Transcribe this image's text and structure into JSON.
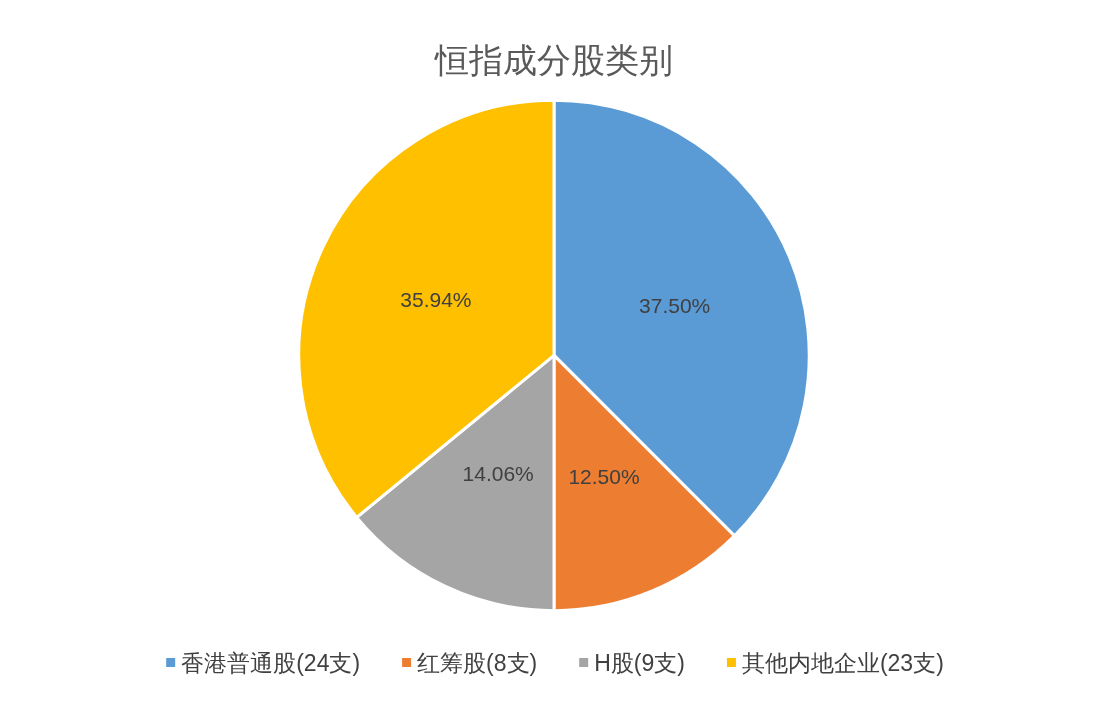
{
  "chart_data": {
    "type": "pie",
    "title": "恒指成分股类别",
    "categories": [
      "香港普通股(24支)",
      "红筹股(8支)",
      "H股(9支)",
      "其他内地企业(23支)"
    ],
    "values": [
      37.5,
      12.5,
      14.06,
      35.94
    ],
    "value_labels": [
      "37.50%",
      "12.50%",
      "14.06%",
      "35.94%"
    ],
    "colors": [
      "#5b9bd5",
      "#ed7d31",
      "#a5a5a5",
      "#ffc000"
    ],
    "legend": "bottom"
  }
}
